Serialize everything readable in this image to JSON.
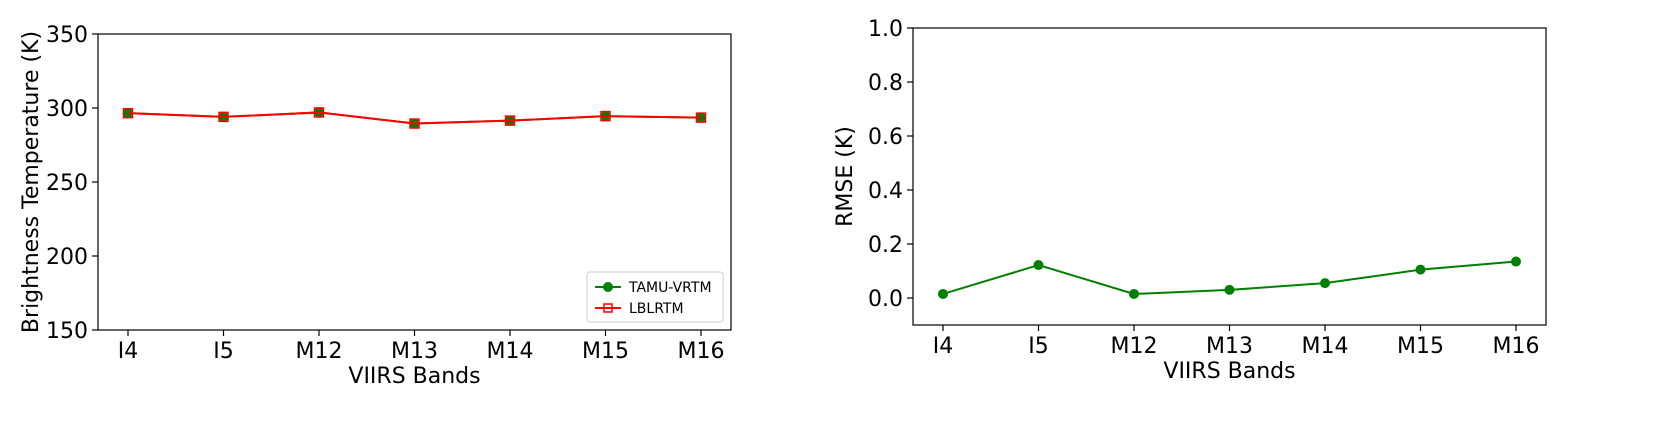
{
  "chart_data": [
    {
      "type": "line",
      "categories": [
        "I4",
        "I5",
        "M12",
        "M13",
        "M14",
        "M15",
        "M16"
      ],
      "xlabel": "VIIRS Bands",
      "ylabel": "Brightness Temperature (K)",
      "ylim": [
        150,
        350
      ],
      "yticks": [
        150,
        200,
        250,
        300,
        350
      ],
      "grid": false,
      "legend_position": "lower-right",
      "series": [
        {
          "name": "TAMU-VRTM",
          "color": "#008000",
          "marker": "circle-filled",
          "values": [
            296.5,
            294.0,
            297.0,
            289.5,
            291.5,
            294.5,
            293.5
          ]
        },
        {
          "name": "LBLRTM",
          "color": "#ff0000",
          "marker": "square-open",
          "values": [
            296.5,
            294.0,
            297.0,
            289.5,
            291.5,
            294.5,
            293.5
          ]
        }
      ]
    },
    {
      "type": "line",
      "categories": [
        "I4",
        "I5",
        "M12",
        "M13",
        "M14",
        "M15",
        "M16"
      ],
      "xlabel": "VIIRS Bands",
      "ylabel": "RMSE (K)",
      "ylim": [
        -0.1,
        1.0
      ],
      "yticks": [
        "0.0",
        "0.2",
        "0.4",
        "0.6",
        "0.8",
        "1.0"
      ],
      "grid": false,
      "series": [
        {
          "color": "#008000",
          "marker": "circle-filled",
          "values": [
            0.015,
            0.122,
            0.015,
            0.03,
            0.055,
            0.105,
            0.135
          ]
        }
      ]
    }
  ]
}
